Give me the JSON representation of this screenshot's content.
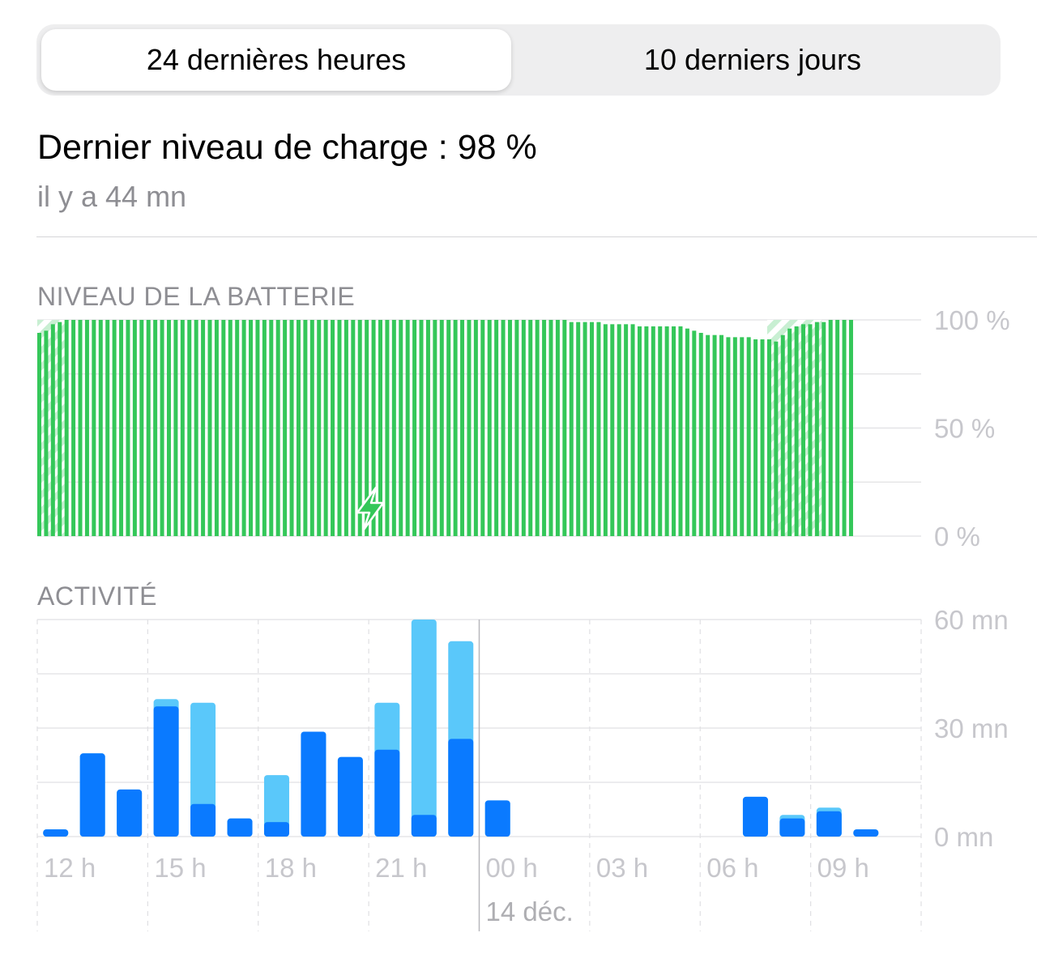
{
  "tabs": [
    {
      "label": "24 dernières heures",
      "selected": true
    },
    {
      "label": "10 derniers jours",
      "selected": false
    }
  ],
  "summary": {
    "title": "Dernier niveau de charge : 98 %",
    "subtitle": "il y a 44 mn"
  },
  "colors": {
    "battery_green": "#34c759",
    "hatch_light": "#c8efd2",
    "screen_on_blue": "#0a7aff",
    "screen_off_blue": "#5ac8fa",
    "grid": "#e0e0e3",
    "tick_text": "#c7c7cc"
  },
  "icons": {
    "charging": "bolt-icon"
  },
  "battery_chart": {
    "title": "NIVEAU DE LA BATTERIE",
    "type": "bar",
    "y_ticks": [
      "100 %",
      "50 %",
      "0 %"
    ],
    "ylim": [
      0,
      100
    ],
    "grid": true,
    "values": [
      94,
      95,
      98,
      99,
      100,
      100,
      100,
      100,
      100,
      100,
      100,
      100,
      100,
      100,
      100,
      100,
      100,
      100,
      100,
      100,
      100,
      100,
      100,
      100,
      100,
      100,
      100,
      100,
      100,
      100,
      100,
      100,
      100,
      100,
      100,
      100,
      100,
      100,
      100,
      100,
      100,
      100,
      100,
      100,
      100,
      100,
      100,
      100,
      100,
      100,
      100,
      100,
      100,
      100,
      100,
      100,
      100,
      100,
      100,
      100,
      100,
      100,
      100,
      100,
      100,
      100,
      100,
      100,
      100,
      100,
      100,
      100,
      100,
      100,
      100,
      100,
      100,
      100,
      99,
      99,
      99,
      99,
      99,
      98,
      98,
      98,
      98,
      98,
      97,
      97,
      97,
      97,
      97,
      97,
      97,
      96,
      95,
      94,
      93,
      93,
      93,
      92,
      92,
      92,
      92,
      91,
      91,
      91,
      90,
      93,
      96,
      97,
      98,
      98,
      99,
      99,
      100,
      100,
      100,
      100
    ],
    "charging_ranges": [
      [
        0,
        3
      ],
      [
        107,
        114
      ]
    ]
  },
  "activity_chart": {
    "title": "ACTIVITÉ",
    "type": "bar",
    "y_ticks": [
      "60 mn",
      "30 mn",
      "0 mn"
    ],
    "ylim": [
      0,
      60
    ],
    "grid": true,
    "x_tick_labels": [
      "12 h",
      "15 h",
      "18 h",
      "21 h",
      "00 h",
      "03 h",
      "06 h",
      "09 h"
    ],
    "date_label": "14 déc.",
    "series": [
      {
        "name": "screen_on",
        "values": [
          2,
          23,
          13,
          36,
          9,
          5,
          4,
          29,
          22,
          24,
          6,
          27,
          10,
          0,
          0,
          0,
          0,
          0,
          0,
          11,
          5,
          7,
          2
        ]
      },
      {
        "name": "screen_off",
        "values": [
          0,
          0,
          0,
          2,
          28,
          0,
          13,
          0,
          0,
          13,
          54,
          27,
          0,
          0,
          0,
          0,
          0,
          0,
          0,
          0,
          1,
          1,
          0
        ]
      }
    ]
  }
}
